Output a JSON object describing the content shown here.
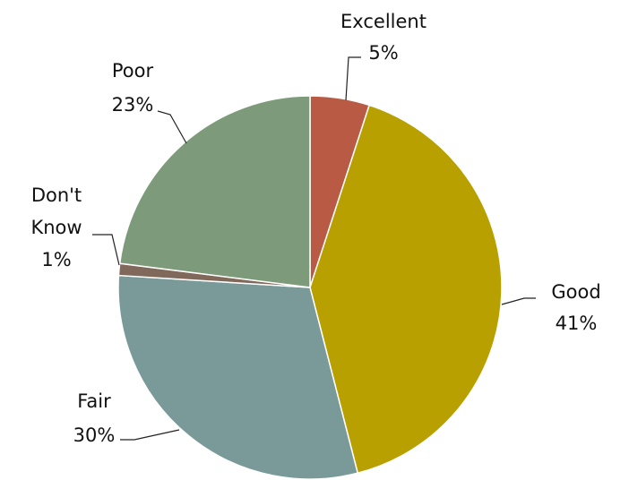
{
  "chart_data": {
    "type": "pie",
    "categories": [
      "Excellent",
      "Good",
      "Fair",
      "Don't Know",
      "Poor"
    ],
    "values": [
      5,
      41,
      30,
      1,
      23
    ],
    "value_labels": [
      "5%",
      "41%",
      "30%",
      "1%",
      "23%"
    ],
    "colors": [
      "#b85a44",
      "#b8a000",
      "#7a9a9a",
      "#80695a",
      "#7d9b7a"
    ]
  }
}
